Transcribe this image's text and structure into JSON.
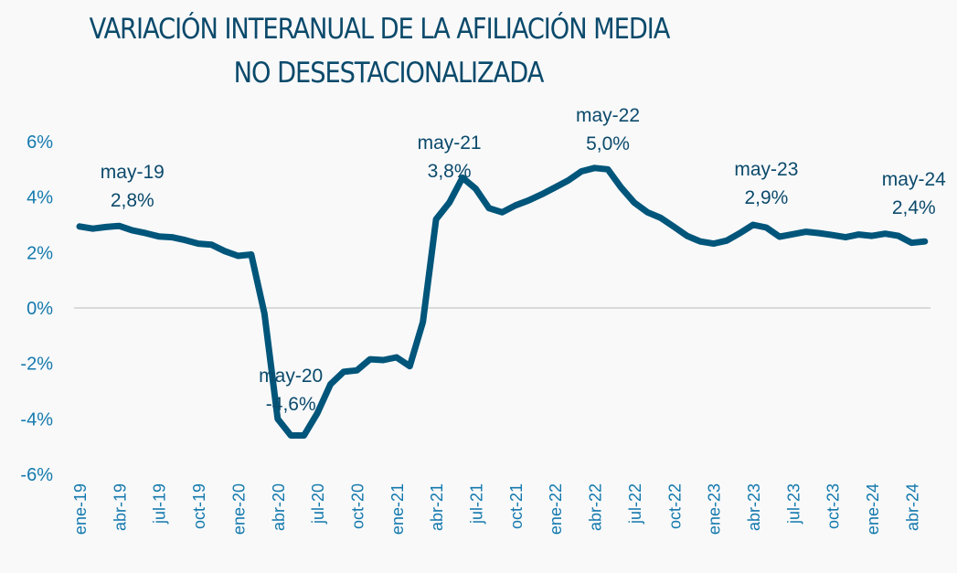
{
  "title_lines": [
    "VARIACIÓN INTERANUAL DE LA AFILIACIÓN MEDIA",
    "NO DESESTACIONALIZADA"
  ],
  "colors": {
    "line": "#00557a",
    "title": "#0b4a6b",
    "tick": "#1479ad",
    "zero_line": "#cfcfcf",
    "background": "#f9f9fa"
  },
  "chart_data": {
    "type": "line",
    "title": "VARIACIÓN INTERANUAL DE LA AFILIACIÓN MEDIA NO DESESTACIONALIZADA",
    "xlabel": "",
    "ylabel": "",
    "ylim": [
      -6,
      6
    ],
    "yticks": [
      6,
      4,
      2,
      0,
      -2,
      -4,
      -6
    ],
    "ytick_labels": [
      "6%",
      "4%",
      "2%",
      "0%",
      "-2%",
      "-4%",
      "-6%"
    ],
    "grid": false,
    "zero_line": true,
    "legend": "none",
    "xtick_labels": [
      "ene-19",
      "abr-19",
      "jul-19",
      "oct-19",
      "ene-20",
      "abr-20",
      "jul-20",
      "oct-20",
      "ene-21",
      "abr-21",
      "jul-21",
      "oct-21",
      "ene-22",
      "abr-22",
      "jul-22",
      "oct-22",
      "ene-23",
      "abr-23",
      "jul-23",
      "oct-23",
      "ene-24",
      "abr-24"
    ],
    "xtick_step_months": 3,
    "x": [
      "ene-19",
      "feb-19",
      "mar-19",
      "abr-19",
      "may-19",
      "jun-19",
      "jul-19",
      "ago-19",
      "sep-19",
      "oct-19",
      "nov-19",
      "dic-19",
      "ene-20",
      "feb-20",
      "mar-20",
      "abr-20",
      "may-20",
      "jun-20",
      "jul-20",
      "ago-20",
      "sep-20",
      "oct-20",
      "nov-20",
      "dic-20",
      "ene-21",
      "feb-21",
      "mar-21",
      "abr-21",
      "may-21",
      "jun-21",
      "jul-21",
      "ago-21",
      "sep-21",
      "oct-21",
      "nov-21",
      "dic-21",
      "ene-22",
      "feb-22",
      "mar-22",
      "abr-22",
      "may-22",
      "jun-22",
      "jul-22",
      "ago-22",
      "sep-22",
      "oct-22",
      "nov-22",
      "dic-22",
      "ene-23",
      "feb-23",
      "mar-23",
      "abr-23",
      "may-23",
      "jun-23",
      "jul-23",
      "ago-23",
      "sep-23",
      "oct-23",
      "nov-23",
      "dic-23",
      "ene-24",
      "feb-24",
      "mar-24",
      "abr-24",
      "may-24"
    ],
    "series": [
      {
        "name": "Variación interanual afiliación media",
        "values": [
          2.94,
          2.86,
          2.92,
          2.96,
          2.8,
          2.7,
          2.58,
          2.55,
          2.45,
          2.32,
          2.28,
          2.05,
          1.88,
          1.93,
          -0.2,
          -4.0,
          -4.6,
          -4.6,
          -3.8,
          -2.75,
          -2.3,
          -2.25,
          -1.85,
          -1.88,
          -1.78,
          -2.1,
          -0.5,
          3.2,
          3.8,
          4.7,
          4.3,
          3.6,
          3.45,
          3.7,
          3.88,
          4.1,
          4.35,
          4.6,
          4.93,
          5.05,
          5.0,
          4.35,
          3.8,
          3.45,
          3.25,
          2.93,
          2.6,
          2.4,
          2.32,
          2.43,
          2.7,
          3.0,
          2.9,
          2.57,
          2.66,
          2.75,
          2.7,
          2.63,
          2.55,
          2.65,
          2.6,
          2.68,
          2.6,
          2.35,
          2.4
        ]
      }
    ],
    "annotations": [
      {
        "x": "may-19",
        "label": "may-19",
        "value": "2,8%"
      },
      {
        "x": "may-20",
        "label": "may-20",
        "value": "-4,6%"
      },
      {
        "x": "may-21",
        "label": "may-21",
        "value": "3,8%"
      },
      {
        "x": "may-22",
        "label": "may-22",
        "value": "5,0%"
      },
      {
        "x": "may-23",
        "label": "may-23",
        "value": "2,9%"
      },
      {
        "x": "may-24",
        "label": "may-24",
        "value": "2,4%"
      }
    ]
  }
}
